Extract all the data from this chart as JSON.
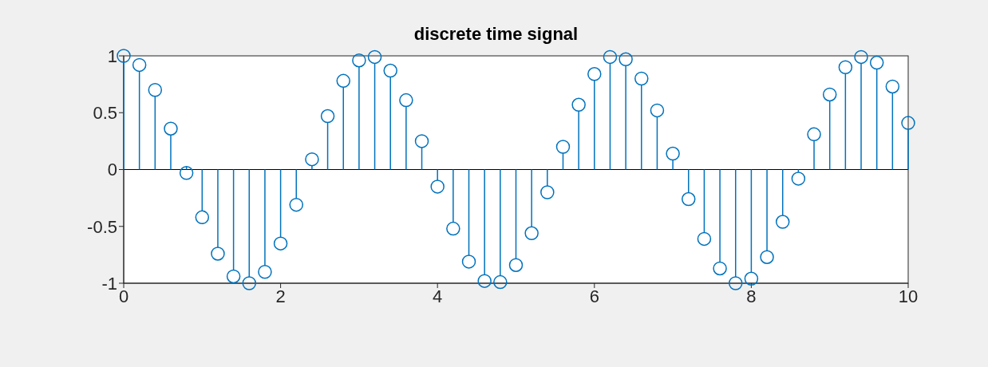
{
  "chart_data": {
    "type": "lollipop",
    "title": "discrete time signal",
    "x": [
      0,
      0.2,
      0.4,
      0.6,
      0.8,
      1,
      1.2,
      1.4,
      1.6,
      1.8,
      2,
      2.2,
      2.4,
      2.6,
      2.8,
      3,
      3.2,
      3.4,
      3.6,
      3.8,
      4,
      4.2,
      4.4,
      4.6,
      4.8,
      5,
      5.2,
      5.4,
      5.6,
      5.8,
      6,
      6.2,
      6.4,
      6.6,
      6.8,
      7,
      7.2,
      7.4,
      7.6,
      7.8,
      8,
      8.2,
      8.4,
      8.6,
      8.8,
      9,
      9.2,
      9.4,
      9.6,
      9.8,
      10
    ],
    "values": [
      1,
      0.92,
      0.7,
      0.36,
      -0.03,
      -0.42,
      -0.74,
      -0.94,
      -1,
      -0.9,
      -0.65,
      -0.31,
      0.09,
      0.47,
      0.78,
      0.96,
      0.99,
      0.87,
      0.61,
      0.25,
      -0.15,
      -0.52,
      -0.81,
      -0.98,
      -0.99,
      -0.84,
      -0.56,
      -0.2,
      0.2,
      0.57,
      0.84,
      0.99,
      0.97,
      0.8,
      0.52,
      0.14,
      -0.26,
      -0.61,
      -0.87,
      -1,
      -0.96,
      -0.77,
      -0.46,
      -0.08,
      0.31,
      0.66,
      0.9,
      0.99,
      0.94,
      0.73,
      0.41
    ],
    "color": "#0072bd",
    "marker": "circle",
    "xlim": [
      0,
      10
    ],
    "xticks": [
      0,
      2,
      4,
      6,
      8,
      10
    ],
    "ylim": [
      -1,
      1
    ],
    "yticks": [
      -1,
      -0.5,
      0,
      0.5,
      1
    ],
    "ref_lines": [
      {
        "axis": "y",
        "value": 0,
        "color": "#000000"
      }
    ]
  }
}
